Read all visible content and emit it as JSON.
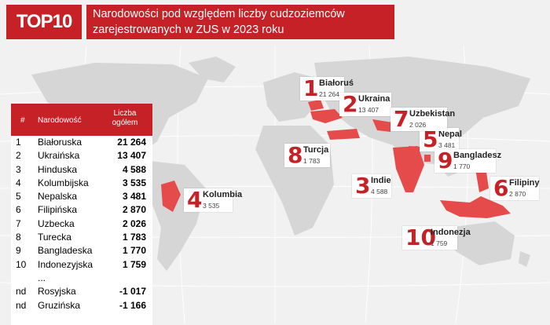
{
  "header": {
    "badge": "TOP10",
    "title_line1": "Narodowości pod względem liczby cudzoziemców",
    "title_line2": "zarejestrowanych w ZUS w 2023 roku"
  },
  "colors": {
    "accent": "#c62127",
    "land": "#d6d6d6",
    "highlight": "#e64b4b"
  },
  "table": {
    "col_rank": "#",
    "col_name": "Narodowość",
    "col_value_line1": "Liczba",
    "col_value_line2": "ogółem",
    "ellipsis": "..."
  },
  "chart_data": {
    "type": "table",
    "title": "Narodowości pod względem liczby cudzoziemców zarejestrowanych w ZUS w 2023 roku",
    "rows": [
      {
        "rank": "1",
        "name": "Białoruska",
        "value": "21 264",
        "country": "Białoruś"
      },
      {
        "rank": "2",
        "name": "Ukraińska",
        "value": "13 407",
        "country": "Ukraina"
      },
      {
        "rank": "3",
        "name": "Hinduska",
        "value": "4 588",
        "country": "Indie"
      },
      {
        "rank": "4",
        "name": "Kolumbijska",
        "value": "3 535",
        "country": "Kolumbia"
      },
      {
        "rank": "5",
        "name": "Nepalska",
        "value": "3 481",
        "country": "Nepal"
      },
      {
        "rank": "6",
        "name": "Filipińska",
        "value": "2 870",
        "country": "Filipiny"
      },
      {
        "rank": "7",
        "name": "Uzbecka",
        "value": "2 026",
        "country": "Uzbekistan"
      },
      {
        "rank": "8",
        "name": "Turecka",
        "value": "1 783",
        "country": "Turcja"
      },
      {
        "rank": "9",
        "name": "Bangladeska",
        "value": "1 770",
        "country": "Bangladesz"
      },
      {
        "rank": "10",
        "name": "Indonezyjska",
        "value": "1 759",
        "country": "Indonezja"
      }
    ],
    "extra_rows": [
      {
        "rank": "nd",
        "name": "Rosyjska",
        "value": "-1 017"
      },
      {
        "rank": "nd",
        "name": "Gruzińska",
        "value": "-1 166"
      }
    ]
  }
}
